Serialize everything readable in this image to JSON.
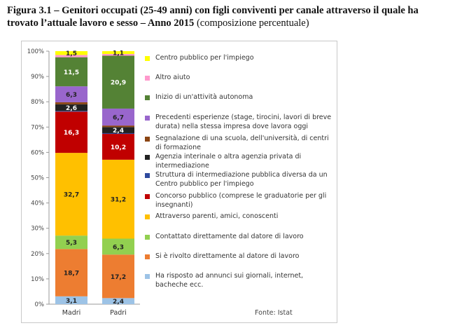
{
  "title": {
    "bold": "Figura 3.1 – Genitori occupati (25-49 anni) con figli conviventi per canale attraverso il quale ha trovato l’attuale lavoro e sesso – Anno 2015",
    "normal": " (composizione percentuale)"
  },
  "source": "Fonte: Istat",
  "chart_data": {
    "type": "bar",
    "stacked": true,
    "categories": [
      "Madri",
      "Padri"
    ],
    "ylim": [
      0,
      100
    ],
    "yticks": [
      "0%",
      "10%",
      "20%",
      "30%",
      "40%",
      "50%",
      "60%",
      "70%",
      "80%",
      "90%",
      "100%"
    ],
    "grid": false,
    "legend_placement": "right",
    "series": [
      {
        "name": "Ha risposto ad annunci sui giornali, internet, bacheche ecc.",
        "color": "#9dc3e6",
        "values": [
          3.1,
          2.4
        ],
        "labels": [
          "3,1",
          "2,4"
        ]
      },
      {
        "name": "Si è rivolto direttamente al datore di lavoro",
        "color": "#ed7d31",
        "values": [
          18.7,
          17.2
        ],
        "labels": [
          "18,7",
          "17,2"
        ]
      },
      {
        "name": "Contattato direttamente dal datore di lavoro",
        "color": "#92d050",
        "values": [
          5.3,
          6.3
        ],
        "labels": [
          "5,3",
          "6,3"
        ]
      },
      {
        "name": "Attraverso parenti, amici, conoscenti",
        "color": "#ffc000",
        "values": [
          32.7,
          31.2
        ],
        "labels": [
          "32,7",
          "31,2"
        ]
      },
      {
        "name": "Concorso pubblico (comprese le graduatorie per gli insegnanti)",
        "color": "#c00000",
        "values": [
          16.3,
          10.2
        ],
        "labels": [
          "16,3",
          "10,2"
        ]
      },
      {
        "name": "Struttura di intermediazione pubblica diversa da un Centro pubblico per l'impiego",
        "color": "#2e4a9e",
        "values": [
          0.3,
          0.3
        ],
        "labels": [
          "",
          ""
        ]
      },
      {
        "name": "Agenzia interinale o altra agenzia privata di intermediazione",
        "color": "#222222",
        "values": [
          2.6,
          2.4
        ],
        "labels": [
          "2,6",
          "2,4"
        ]
      },
      {
        "name": "Segnalazione di una scuola, dell'università, di centri di formazione",
        "color": "#8b4513",
        "values": [
          0.8,
          0.6
        ],
        "labels": [
          "",
          ""
        ]
      },
      {
        "name": "Precedenti esperienze (stage, tirocini, lavori di breve durata) nella stessa impresa dove lavora oggi",
        "color": "#9966cc",
        "values": [
          6.3,
          6.7
        ],
        "labels": [
          "6,3",
          "6,7"
        ]
      },
      {
        "name": "Inizio di un'attività autonoma",
        "color": "#548235",
        "values": [
          11.5,
          20.9
        ],
        "labels": [
          "11,5",
          "20,9"
        ]
      },
      {
        "name": "Altro aiuto",
        "color": "#ff99cc",
        "values": [
          0.9,
          0.7
        ],
        "labels": [
          "",
          ""
        ]
      },
      {
        "name": "Centro pubblico per l'impiego",
        "color": "#ffff00",
        "values": [
          1.5,
          1.1
        ],
        "labels": [
          "1,5",
          "1,1"
        ]
      }
    ],
    "legend_order": [
      11,
      10,
      9,
      8,
      7,
      6,
      5,
      4,
      3,
      2,
      1,
      0
    ]
  }
}
